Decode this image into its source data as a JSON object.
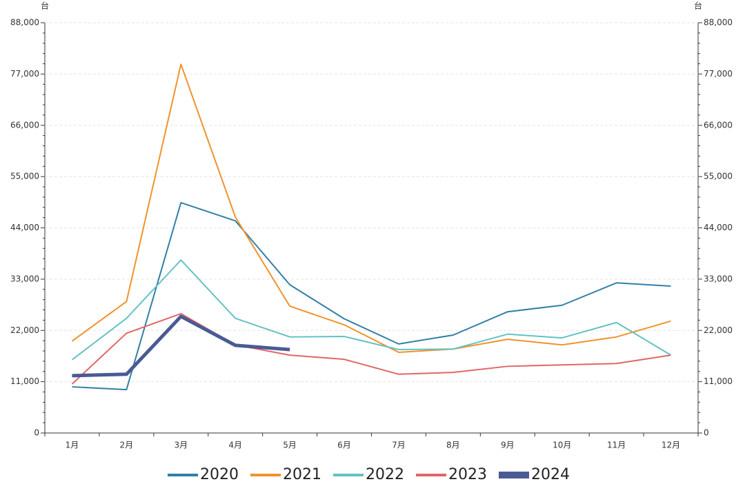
{
  "chart_data": {
    "type": "line",
    "y_unit": "台",
    "categories": [
      "1月",
      "2月",
      "3月",
      "4月",
      "5月",
      "6月",
      "7月",
      "8月",
      "9月",
      "10月",
      "11月",
      "12月"
    ],
    "series": [
      {
        "name": "2020",
        "color": "#2f7fa6",
        "values": [
          9900,
          9300,
          49400,
          45500,
          31800,
          24500,
          19100,
          21000,
          26000,
          27400,
          32200,
          31500
        ]
      },
      {
        "name": "2021",
        "color": "#f0922b",
        "values": [
          19700,
          28200,
          79100,
          46300,
          27200,
          23200,
          17300,
          18000,
          20100,
          18900,
          20600,
          24000
        ]
      },
      {
        "name": "2022",
        "color": "#63c2c2",
        "values": [
          15700,
          24600,
          37100,
          24600,
          20600,
          20700,
          17900,
          18000,
          21200,
          20400,
          23700,
          16700
        ]
      },
      {
        "name": "2023",
        "color": "#e06666",
        "values": [
          10500,
          21400,
          25600,
          18900,
          16700,
          15800,
          12600,
          13000,
          14300,
          14600,
          14900,
          16700
        ]
      },
      {
        "name": "2024",
        "color": "#4a5a94",
        "values": [
          12300,
          12600,
          25000,
          18800,
          17900,
          null,
          null,
          null,
          null,
          null,
          null,
          null
        ]
      }
    ],
    "ylim": [
      0,
      88000
    ],
    "yticks": [
      0,
      {
        "value": 11000,
        "label": "11,000"
      },
      {
        "value": 22000,
        "label": "22,000"
      },
      {
        "value": 33000,
        "label": "33,000"
      },
      {
        "value": 44000,
        "label": "44,000"
      },
      {
        "value": 55000,
        "label": "55,000"
      },
      {
        "value": 66000,
        "label": "66,000"
      },
      {
        "value": 77000,
        "label": "77,000"
      },
      {
        "value": 88000,
        "label": "88,000"
      }
    ],
    "grid": true
  }
}
